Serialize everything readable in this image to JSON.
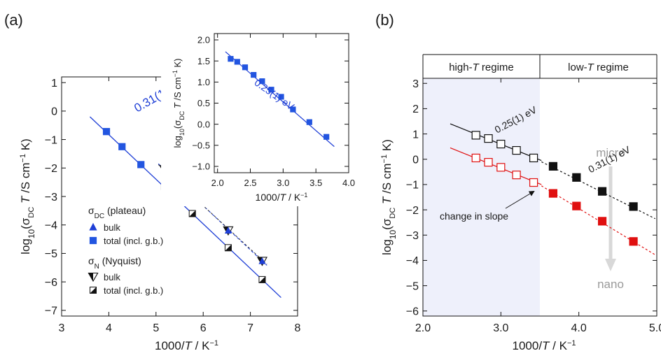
{
  "colors": {
    "blue": "#1f3fd6",
    "square_blue": "#2255e0",
    "red": "#e01010",
    "black": "#111111",
    "shade": "#eef0fb",
    "arrow_grey": "#d8d8d8",
    "label_grey": "#9a9a9a"
  },
  "panel_a": {
    "label": "(a)",
    "xlabel": "1000/T / K⁻¹",
    "ylabel": "log10(σDC T /S cm⁻¹ K)",
    "xlim": [
      3,
      8
    ],
    "ylim": [
      -7.2,
      1.2
    ],
    "xticks": [
      "3",
      "4",
      "5",
      "6",
      "7",
      "8"
    ],
    "yticks": [
      "1",
      "0",
      "−1",
      "−2",
      "−3",
      "−4",
      "−5",
      "−6",
      "−7"
    ],
    "annotation": "0.31(1) eV",
    "legend": {
      "head1": "σDC (plateau)",
      "bulk1": "bulk",
      "total1": "total (incl. g.b.)",
      "head2": "σN  (Nyquist)",
      "bulk2": "bulk",
      "total2": "total (incl. g.b.)"
    }
  },
  "inset": {
    "xlabel": "1000/T / K⁻¹",
    "ylabel": "log10(σDC T /S cm⁻¹ K)",
    "xlim": [
      1.95,
      4.0
    ],
    "ylim": [
      -1.15,
      2.15
    ],
    "xticks": [
      "2.0",
      "2.5",
      "3.0",
      "3.5",
      "4.0"
    ],
    "yticks": [
      "2.0",
      "1.5",
      "1.0",
      "0.5",
      "0.0",
      "−0.5",
      "−1.0"
    ],
    "annotation": "0.25(1) eV"
  },
  "panel_b": {
    "label": "(b)",
    "xlabel": "1000/T / K⁻¹",
    "ylabel": "log10(σDC T /S cm⁻¹ K)",
    "xlim": [
      2.0,
      5.0
    ],
    "ylim": [
      -6.2,
      3.2
    ],
    "xticks": [
      "2.0",
      "3.0",
      "4.0",
      "5.0"
    ],
    "yticks": [
      "3",
      "2",
      "1",
      "0",
      "−1",
      "−2",
      "−3",
      "−4",
      "−5",
      "−6"
    ],
    "regime_high": "high-T regime",
    "regime_low": "low-T regime",
    "annotation_upper": "0.25(1) eV",
    "annotation_lower": "0.31(1) eV",
    "change_label": "change in slope",
    "micro_label": "micro",
    "nano_label": "nano"
  },
  "chart_data": [
    {
      "type": "scatter",
      "panel": "(a)",
      "xlabel": "1000/T / K⁻¹",
      "ylabel": "log10(σDC T /S cm⁻¹ K)",
      "xlim": [
        3,
        8
      ],
      "ylim": [
        -7,
        1
      ],
      "series": [
        {
          "name": "σDC (plateau) bulk",
          "x": [
            5.18,
            5.77,
            6.53,
            7.25
          ],
          "y": [
            -2.05,
            -3.0,
            -4.18,
            -5.25
          ]
        },
        {
          "name": "σDC (plateau) total (incl. g.b.)",
          "x": [
            3.95,
            4.28,
            4.68,
            5.18,
            5.77,
            6.53,
            7.25
          ],
          "y": [
            -0.72,
            -1.25,
            -1.88,
            -2.65,
            -3.6,
            -4.8,
            -5.92
          ]
        },
        {
          "name": "σN (Nyquist) bulk",
          "x": [
            5.18,
            5.77,
            6.53,
            7.25
          ],
          "y": [
            -2.05,
            -2.97,
            -4.2,
            -5.27
          ]
        },
        {
          "name": "σN (Nyquist) total (incl. g.b.)",
          "x": [
            5.18,
            5.77,
            6.53,
            7.25
          ],
          "y": [
            -2.65,
            -3.6,
            -4.8,
            -5.92
          ]
        }
      ],
      "fits": [
        {
          "label": "0.31(1) eV",
          "x": [
            3.6,
            7.65
          ],
          "y": [
            -0.2,
            -6.55
          ]
        },
        {
          "x": [
            5.05,
            7.35
          ],
          "y": [
            -1.85,
            -5.42
          ]
        },
        {
          "x": [
            5.05,
            7.35
          ],
          "y": [
            -1.88,
            -5.38
          ]
        }
      ],
      "legend_position": "center-left"
    },
    {
      "type": "scatter",
      "panel": "(a) inset",
      "xlabel": "1000/T / K⁻¹",
      "ylabel": "log10(σDC T /S cm⁻¹ K)",
      "xlim": [
        2.0,
        4.0
      ],
      "ylim": [
        -1.0,
        2.0
      ],
      "series": [
        {
          "name": "",
          "x": [
            2.2,
            2.3,
            2.42,
            2.55,
            2.68,
            2.82,
            2.97,
            3.15,
            3.4,
            3.66
          ],
          "y": [
            1.55,
            1.48,
            1.35,
            1.17,
            1.02,
            0.82,
            0.65,
            0.35,
            0.05,
            -0.3
          ]
        }
      ],
      "fits": [
        {
          "label": "0.25(1) eV",
          "x": [
            2.12,
            3.78
          ],
          "y": [
            1.72,
            -0.53
          ]
        }
      ]
    },
    {
      "type": "scatter",
      "panel": "(b)",
      "xlabel": "1000/T / K⁻¹",
      "ylabel": "log10(σDC T /S cm⁻¹ K)",
      "xlim": [
        2.0,
        5.0
      ],
      "ylim": [
        -6,
        3
      ],
      "series": [
        {
          "name": "micro high-T",
          "x": [
            2.68,
            2.84,
            3.0,
            3.2,
            3.42
          ],
          "y": [
            0.95,
            0.82,
            0.6,
            0.35,
            0.05
          ]
        },
        {
          "name": "micro low-T",
          "x": [
            3.67,
            3.97,
            4.3,
            4.7
          ],
          "y": [
            -0.28,
            -0.72,
            -1.27,
            -1.87
          ]
        },
        {
          "name": "nano high-T",
          "x": [
            2.68,
            2.84,
            3.0,
            3.2,
            3.42
          ],
          "y": [
            0.05,
            -0.12,
            -0.32,
            -0.62,
            -0.92
          ]
        },
        {
          "name": "nano low-T",
          "x": [
            3.67,
            3.97,
            4.3,
            4.7
          ],
          "y": [
            -1.35,
            -1.85,
            -2.45,
            -3.25
          ]
        }
      ],
      "fits": [
        {
          "label": "0.25(1) eV",
          "x": [
            2.35,
            3.52
          ],
          "y": [
            1.4,
            -0.05
          ]
        },
        {
          "label": "0.31(1) eV",
          "x": [
            3.52,
            4.98
          ],
          "y": [
            -0.1,
            -2.35
          ]
        },
        {
          "x": [
            2.35,
            3.52
          ],
          "y": [
            0.45,
            -1.0
          ]
        },
        {
          "x": [
            3.52,
            4.98
          ],
          "y": [
            -1.05,
            -3.78
          ]
        }
      ],
      "shaded_region": {
        "label": "high-T regime",
        "x": [
          2.0,
          3.5
        ]
      }
    }
  ]
}
